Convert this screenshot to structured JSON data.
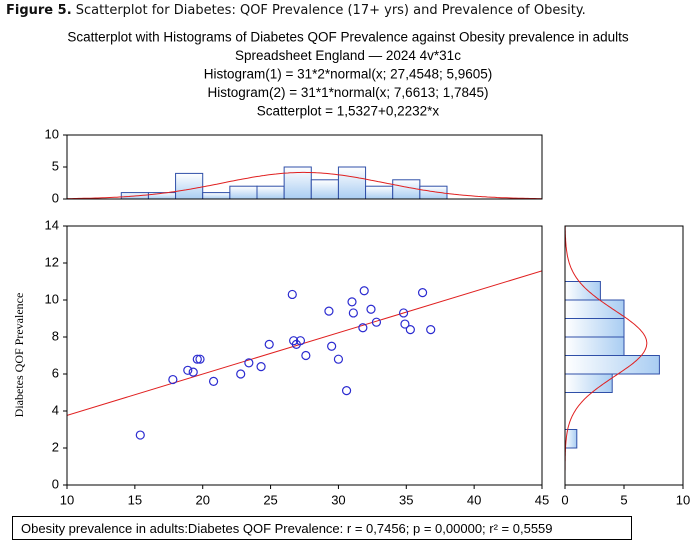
{
  "caption": {
    "label": "Figure 5.",
    "text": "Scatterplot for Diabetes: QOF Prevalence (17+ yrs) and Prevalence of Obesity."
  },
  "chart_data": {
    "type": "scatter",
    "title": "Scatterplot with Histograms of Diabetes QOF Prevalence against Obesity prevalence in adults",
    "subtitle": [
      "Spreadsheet England — 2024 4v*31c",
      "Histogram(1) = 31*2*normal(x; 27,4548; 5,9605)",
      "Histogram(2) = 31*1*normal(x; 7,6613; 1,7845)",
      "Scatterplot = 1,5327+0,2232*x"
    ],
    "y_label": "Diabetes QOF Prevalence",
    "x": [
      15.4,
      17.8,
      18.9,
      19.3,
      19.6,
      19.8,
      20.8,
      22.8,
      23.4,
      24.3,
      24.9,
      26.6,
      26.7,
      26.9,
      27.2,
      27.6,
      29.3,
      29.5,
      30.0,
      30.6,
      31.0,
      31.1,
      31.9,
      31.8,
      32.4,
      32.8,
      34.8,
      34.9,
      35.3,
      36.2,
      36.8
    ],
    "values": [
      2.7,
      5.7,
      6.2,
      6.1,
      6.8,
      6.8,
      5.6,
      6.0,
      6.6,
      6.4,
      7.6,
      10.3,
      7.8,
      7.6,
      7.8,
      7.0,
      9.4,
      7.5,
      6.8,
      5.1,
      9.9,
      9.3,
      10.5,
      8.5,
      9.5,
      8.8,
      9.3,
      8.7,
      8.4,
      10.4,
      8.4
    ],
    "color": "#2b2bd0",
    "xlim": [
      10,
      45
    ],
    "xticks": [
      10,
      15,
      20,
      25,
      30,
      35,
      40,
      45
    ],
    "ylim": [
      0,
      14
    ],
    "yticks": [
      0,
      2,
      4,
      6,
      8,
      10,
      12,
      14
    ],
    "fit": {
      "intercept": 1.5327,
      "slope": 0.2232,
      "color": "#e02020"
    },
    "x_histogram": {
      "bins": [
        14,
        16,
        18,
        20,
        22,
        24,
        26,
        28,
        30,
        32,
        34,
        36,
        38
      ],
      "counts": [
        1,
        1,
        4,
        1,
        2,
        2,
        5,
        3,
        5,
        2,
        3,
        2
      ],
      "ylim": [
        0,
        10
      ],
      "yticks": [
        0,
        5,
        10
      ],
      "normal": {
        "n": 31,
        "bin_width": 2,
        "mean": 27.4548,
        "sd": 5.9605
      }
    },
    "y_histogram": {
      "bins": [
        2,
        3,
        4,
        5,
        6,
        7,
        8,
        9,
        10,
        11
      ],
      "counts": [
        1,
        0,
        0,
        4,
        8,
        5,
        5,
        5,
        3
      ],
      "xlim": [
        0,
        10
      ],
      "xticks": [
        0,
        5,
        10
      ],
      "normal": {
        "n": 31,
        "bin_width": 1,
        "mean": 7.6613,
        "sd": 1.7845
      }
    },
    "bar_color": "#2f4fa8"
  },
  "footer": "Obesity prevalence in adults:Diabetes QOF Prevalence:   r = 0,7456; p = 0,00000; r² = 0,5559"
}
